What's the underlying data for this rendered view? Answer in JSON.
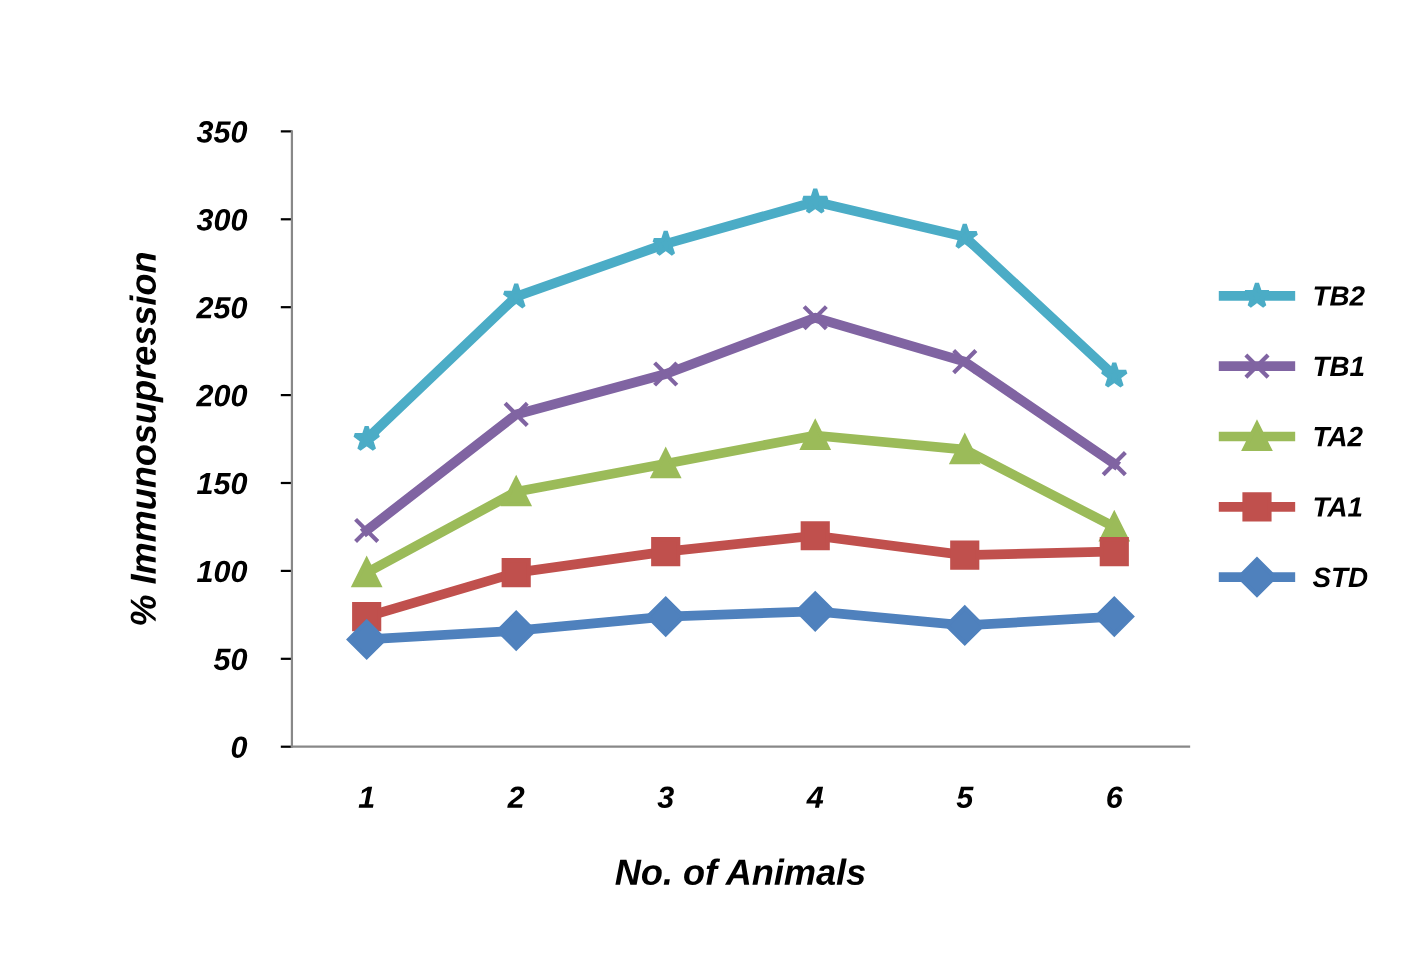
{
  "chart_data": {
    "type": "line",
    "xlabel": "No. of Animals",
    "ylabel": "% Immunosupression",
    "categories": [
      "1",
      "2",
      "3",
      "4",
      "5",
      "6"
    ],
    "ylim": [
      0,
      350
    ],
    "yticks": [
      0,
      50,
      100,
      150,
      200,
      250,
      300,
      350
    ],
    "grid": false,
    "legend": "right",
    "series": [
      {
        "name": "TB2",
        "color": "#4bacc6",
        "marker": "star",
        "values": [
          175,
          256,
          286,
          310,
          290,
          211
        ]
      },
      {
        "name": "TB1",
        "color": "#8064a2",
        "marker": "cross",
        "values": [
          123,
          189,
          212,
          244,
          219,
          161
        ]
      },
      {
        "name": "TA2",
        "color": "#9bbb59",
        "marker": "triangle",
        "values": [
          99,
          145,
          161,
          177,
          169,
          125
        ]
      },
      {
        "name": "TA1",
        "color": "#c0504d",
        "marker": "square",
        "values": [
          74,
          99,
          111,
          120,
          109,
          111
        ]
      },
      {
        "name": "STD",
        "color": "#4f81bd",
        "marker": "diamond",
        "values": [
          61,
          66,
          74,
          77,
          69,
          74
        ]
      }
    ]
  }
}
